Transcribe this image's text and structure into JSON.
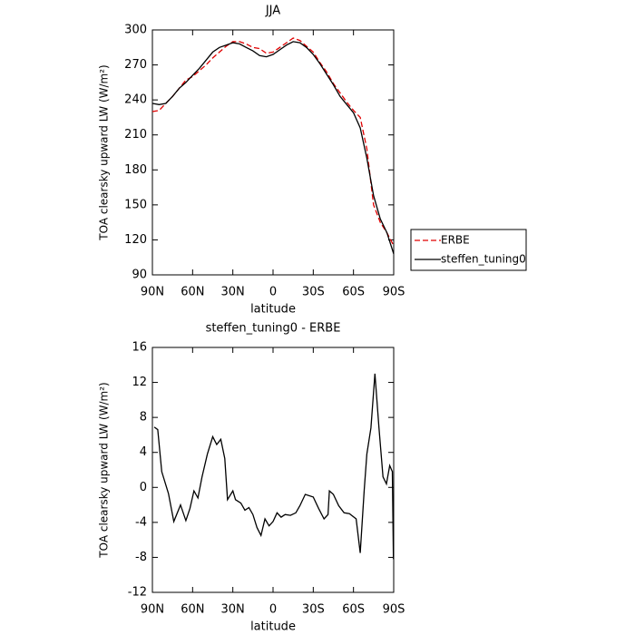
{
  "chart_data": [
    {
      "type": "line",
      "title": "JJA",
      "xlabel": "latitude",
      "ylabel": "TOA clearsky upward LW (W/m²)",
      "x": [
        90,
        85,
        80,
        75,
        70,
        65,
        60,
        55,
        50,
        45,
        40,
        35,
        30,
        25,
        20,
        15,
        10,
        5,
        0,
        -5,
        -10,
        -15,
        -20,
        -25,
        -30,
        -35,
        -40,
        -45,
        -50,
        -55,
        -60,
        -65,
        -70,
        -75,
        -80,
        -85,
        -90
      ],
      "series": [
        {
          "name": "ERBE",
          "color": "#e00000",
          "dash": true,
          "values": [
            230,
            231,
            237,
            243,
            250,
            257,
            260,
            265,
            270,
            276,
            281,
            286,
            290,
            290,
            288,
            285,
            284,
            280,
            281,
            285,
            289,
            293,
            291,
            286,
            281,
            272,
            264,
            254,
            246,
            238,
            231,
            225,
            198,
            150,
            135,
            126,
            115
          ]
        },
        {
          "name": "steffen_tuning0",
          "color": "#000000",
          "dash": false,
          "values": [
            237,
            236,
            237,
            243,
            250,
            255,
            261,
            267,
            274,
            281,
            285,
            287,
            289,
            288,
            285,
            282,
            278,
            277,
            279,
            283,
            287,
            290,
            289,
            285,
            279,
            271,
            262,
            253,
            243,
            236,
            229,
            216,
            190,
            158,
            138,
            126,
            108
          ]
        }
      ],
      "xlim": [
        90,
        -90
      ],
      "xticks": [
        {
          "value": 90,
          "label": "90N"
        },
        {
          "value": 60,
          "label": "60N"
        },
        {
          "value": 30,
          "label": "30N"
        },
        0,
        {
          "value": -30,
          "label": "30S"
        },
        {
          "value": -60,
          "label": "60S"
        },
        {
          "value": -90,
          "label": "90S"
        }
      ],
      "ylim": [
        90,
        300
      ],
      "yticks": [
        90,
        120,
        150,
        180,
        210,
        240,
        270,
        300
      ],
      "legend": "right"
    },
    {
      "type": "line",
      "title": "steffen_tuning0 - ERBE",
      "xlabel": "latitude",
      "ylabel": "TOA clearsky upward LW (W/m²)",
      "x": [
        88.6,
        86,
        83,
        78,
        74,
        69,
        65,
        62,
        59,
        56,
        53,
        49,
        45,
        42,
        39,
        36,
        34,
        30,
        28,
        24,
        21,
        18,
        15,
        12,
        9,
        6,
        3,
        0,
        -3,
        -6,
        -9,
        -13,
        -17,
        -20,
        -24,
        -30,
        -34,
        -38,
        -41,
        -42,
        -45,
        -49,
        -53,
        -57,
        -62,
        -65,
        -68,
        -70,
        -73,
        -76,
        -79,
        -82,
        -84.6,
        -87,
        -89,
        -89.8
      ],
      "series": [
        {
          "name": "steffen_tuning0 - ERBE",
          "color": "#000000",
          "dash": false,
          "values": [
            6.9,
            6.6,
            1.8,
            -0.7,
            -3.9,
            -2,
            -3.8,
            -2.4,
            -0.4,
            -1.2,
            1.2,
            3.8,
            5.8,
            4.9,
            5.5,
            3.3,
            -1.4,
            -0.4,
            -1.4,
            -1.8,
            -2.6,
            -2.3,
            -3.1,
            -4.6,
            -5.5,
            -3.6,
            -4.4,
            -3.9,
            -2.9,
            -3.4,
            -3.1,
            -3.2,
            -2.9,
            -2.1,
            -0.8,
            -1.1,
            -2.4,
            -3.6,
            -3.1,
            -0.4,
            -0.8,
            -2.1,
            -2.9,
            -3,
            -3.6,
            -7.5,
            -0.3,
            3.8,
            6.8,
            13,
            6.9,
            1.2,
            0.4,
            2.5,
            1.8,
            -8.2
          ]
        }
      ],
      "xlim": [
        90,
        -90
      ],
      "xticks": [
        {
          "value": 90,
          "label": "90N"
        },
        {
          "value": 60,
          "label": "60N"
        },
        {
          "value": 30,
          "label": "30N"
        },
        0,
        {
          "value": -30,
          "label": "30S"
        },
        {
          "value": -60,
          "label": "60S"
        },
        {
          "value": -90,
          "label": "90S"
        }
      ],
      "ylim": [
        -12,
        16
      ],
      "yticks": [
        -12,
        -8,
        -4,
        0,
        4,
        8,
        12,
        16
      ]
    }
  ]
}
